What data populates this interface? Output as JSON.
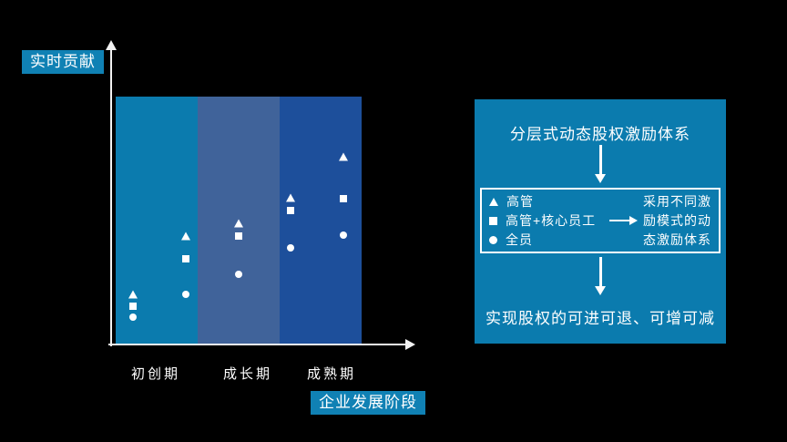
{
  "labels": {
    "y_axis": "实时贡献",
    "x_axis": "企业发展阶段"
  },
  "colors": {
    "background": "#000000",
    "accent_teal": "#0B7BAE",
    "label_box_teal": "#1081B4",
    "band_startup": "#0B7BAE",
    "band_growth": "#40639A",
    "band_mature": "#1D4F9B",
    "marker_white": "#FFFFFF"
  },
  "chart_data": {
    "type": "scatter",
    "title": "",
    "xlabel": "企业发展阶段",
    "ylabel": "实时贡献",
    "x_categories": [
      "初创期",
      "成长期",
      "成熟期"
    ],
    "bands": [
      {
        "label": "初创期",
        "color": "#0B7BAE"
      },
      {
        "label": "成长期",
        "color": "#40639A"
      },
      {
        "label": "成熟期",
        "color": "#1D4F9B"
      }
    ],
    "x_positions": [
      0.07,
      0.285,
      0.5,
      0.711,
      0.926
    ],
    "series": [
      {
        "name": "高管",
        "marker": "triangle",
        "values": [
          0.2,
          0.435,
          0.487,
          0.59,
          0.756
        ]
      },
      {
        "name": "高管+核心员工",
        "marker": "square",
        "values": [
          0.151,
          0.343,
          0.435,
          0.539,
          0.587
        ]
      },
      {
        "name": "全员",
        "marker": "circle",
        "values": [
          0.107,
          0.199,
          0.28,
          0.387,
          0.439
        ]
      }
    ],
    "ylim": [
      0,
      1
    ],
    "legend_position": "right-panel",
    "grid": false
  },
  "panel": {
    "title": "分层式动态股权激励体系",
    "legend": {
      "items": [
        {
          "marker": "triangle",
          "label": "高管"
        },
        {
          "marker": "square",
          "label": "高管+核心员工"
        },
        {
          "marker": "circle",
          "label": "全员"
        }
      ],
      "note_lines": [
        "采用不同激",
        "励模式的动",
        "态激励体系"
      ]
    },
    "bottom_text": "实现股权的可进可退、可增可减"
  }
}
